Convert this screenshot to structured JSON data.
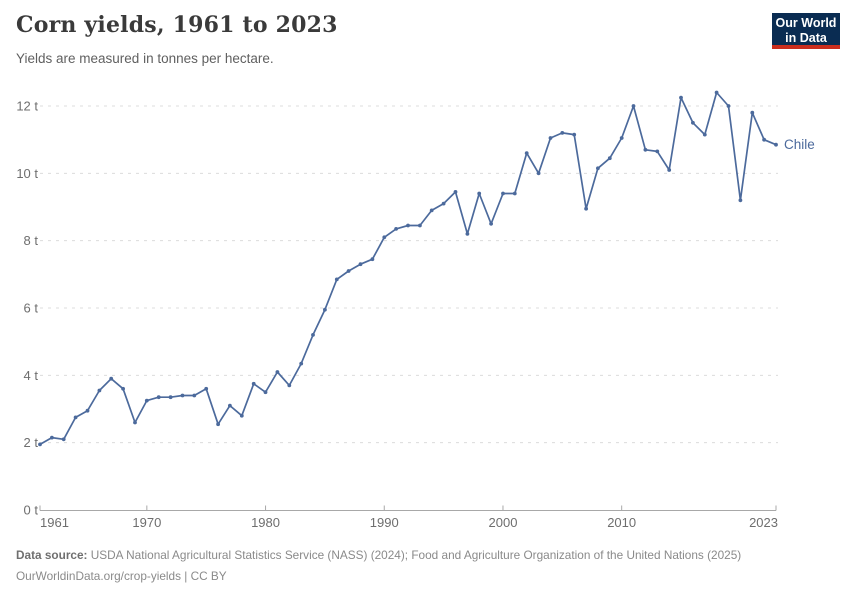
{
  "header": {
    "title": "Corn yields, 1961 to 2023",
    "subtitle": "Yields are measured in tonnes per hectare.",
    "logo": {
      "line1": "Our World",
      "line2": "in Data"
    }
  },
  "chart_data": {
    "type": "line",
    "title": "Corn yields, 1961 to 2023",
    "ylabel": "",
    "xlabel": "",
    "unit": "tonnes per hectare",
    "xlim": [
      1961,
      2023
    ],
    "ylim": [
      0,
      12
    ],
    "grid": "horizontal-dashed",
    "legend_position": "end-of-line",
    "xticks": {
      "values": [
        1961,
        1970,
        1980,
        1990,
        2000,
        2010,
        2023
      ],
      "labels": [
        "1961",
        "1970",
        "1980",
        "1990",
        "2000",
        "2010",
        "2023"
      ]
    },
    "yticks": {
      "values": [
        0,
        2,
        4,
        6,
        8,
        10,
        12
      ],
      "labels": [
        "0 t",
        "2 t",
        "4 t",
        "6 t",
        "8 t",
        "10 t",
        "12 t"
      ]
    },
    "series": [
      {
        "name": "Chile",
        "color": "#4c6a9c",
        "x": [
          1961,
          1962,
          1963,
          1964,
          1965,
          1966,
          1967,
          1968,
          1969,
          1970,
          1971,
          1972,
          1973,
          1974,
          1975,
          1976,
          1977,
          1978,
          1979,
          1980,
          1981,
          1982,
          1983,
          1984,
          1985,
          1986,
          1987,
          1988,
          1989,
          1990,
          1991,
          1992,
          1993,
          1994,
          1995,
          1996,
          1997,
          1998,
          1999,
          2000,
          2001,
          2002,
          2003,
          2004,
          2005,
          2006,
          2007,
          2008,
          2009,
          2010,
          2011,
          2012,
          2013,
          2014,
          2015,
          2016,
          2017,
          2018,
          2019,
          2020,
          2021,
          2022,
          2023
        ],
        "values": [
          1.95,
          2.15,
          2.1,
          2.75,
          2.95,
          3.55,
          3.9,
          3.6,
          2.6,
          3.25,
          3.35,
          3.35,
          3.4,
          3.4,
          3.6,
          2.55,
          3.1,
          2.8,
          3.75,
          3.5,
          4.1,
          3.7,
          4.35,
          5.2,
          5.95,
          6.85,
          7.1,
          7.3,
          7.45,
          8.1,
          8.35,
          8.45,
          8.45,
          8.9,
          9.1,
          9.45,
          8.2,
          9.4,
          8.5,
          9.4,
          9.4,
          10.6,
          10.0,
          11.05,
          11.2,
          11.15,
          8.95,
          10.15,
          10.45,
          11.05,
          12.0,
          10.7,
          10.65,
          10.1,
          12.25,
          11.5,
          11.15,
          12.4,
          12.0,
          9.2,
          11.8,
          11.0,
          10.85
        ]
      }
    ],
    "colors": {
      "line": "#4c6a9c",
      "grid": "#dcdcdc",
      "axis": "#a8a8a8",
      "tick_label": "#6e6e6e",
      "logo_navy": "#0a2c52",
      "logo_red": "#cb2d1d"
    }
  },
  "footer": {
    "source_label": "Data source:",
    "source_text": " USDA National Agricultural Statistics Service (NASS) (2024); Food and Agriculture Organization of the United Nations (2025)",
    "license_line": "OurWorldinData.org/crop-yields | CC BY"
  }
}
